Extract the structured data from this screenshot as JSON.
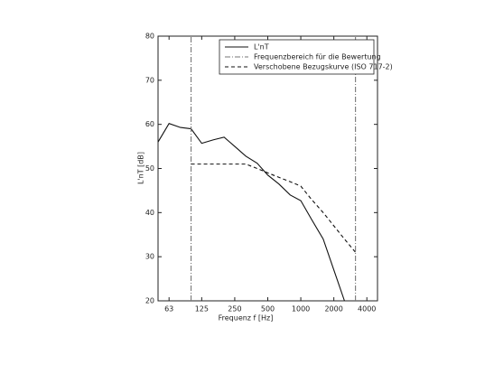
{
  "chart_data": {
    "type": "line",
    "x_label": "Frequenz f [Hz]",
    "y_label": "L'nT [dB]",
    "xscale": "log",
    "xlim": [
      50,
      5000
    ],
    "xticks": [
      63,
      125,
      250,
      500,
      1000,
      2000,
      4000
    ],
    "ylim": [
      20,
      80
    ],
    "yticks": [
      20,
      30,
      40,
      50,
      60,
      70,
      80
    ],
    "legend": "upper right",
    "series": [
      {
        "name": "L'nT",
        "color": "#111111",
        "dash": "solid",
        "x": [
          50,
          63,
          80,
          100,
          125,
          160,
          200,
          250,
          315,
          400,
          500,
          630,
          800,
          1000,
          1250,
          1600,
          2000,
          2500
        ],
        "values": [
          56,
          60.2,
          59.3,
          59,
          55.7,
          56.5,
          57.1,
          55,
          52.8,
          51.2,
          48.5,
          46.5,
          44,
          42.7,
          38.5,
          34,
          27,
          20
        ]
      },
      {
        "name": "Frequenzbereich für die Bewertung",
        "color": "#777777",
        "dash": "dashdot",
        "x": [
          100,
          100,
          3150,
          3150,
          3150
        ],
        "values": [
          20,
          80,
          null,
          20,
          80
        ]
      },
      {
        "name": "Verschobene Bezugskurve (ISO 717-2)",
        "color": "#111111",
        "dash": "dash",
        "x": [
          100,
          125,
          160,
          200,
          250,
          315,
          400,
          500,
          630,
          800,
          1000,
          1250,
          1600,
          2000,
          2500,
          3150
        ],
        "values": [
          51,
          51,
          51,
          51,
          51,
          51,
          50,
          49,
          48,
          47,
          46,
          43,
          40,
          37,
          34,
          31
        ]
      }
    ]
  }
}
